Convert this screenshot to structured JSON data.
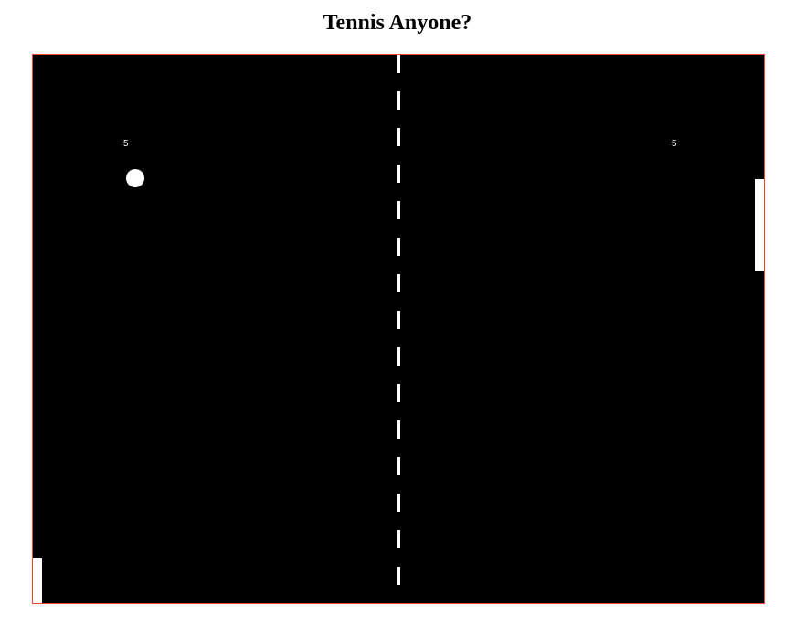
{
  "page": {
    "title": "Tennis Anyone?"
  },
  "game": {
    "score_left": "5",
    "score_right": "5",
    "colors": {
      "court": "#000000",
      "border": "#e8472e",
      "foreground": "#ffffff"
    }
  }
}
